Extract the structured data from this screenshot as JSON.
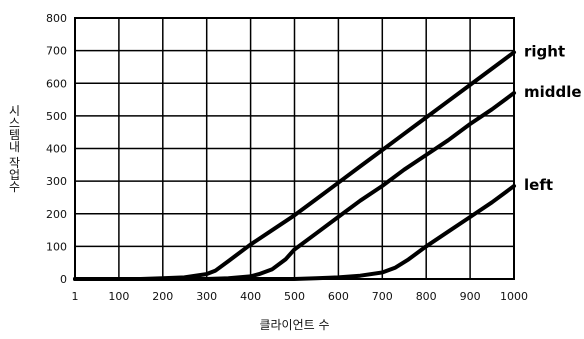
{
  "chart_data": {
    "type": "line",
    "title": "",
    "xlabel": "클라이언트 수",
    "ylabel": "시스템내 작업수",
    "x_ticks": [
      "1",
      "100",
      "200",
      "300",
      "400",
      "500",
      "600",
      "700",
      "800",
      "900",
      "1000"
    ],
    "y_ticks": [
      "0",
      "100",
      "200",
      "300",
      "400",
      "500",
      "600",
      "700",
      "800"
    ],
    "xlim": [
      1,
      1000
    ],
    "ylim": [
      0,
      800
    ],
    "grid": true,
    "series": [
      {
        "name": "right",
        "x": [
          1,
          150,
          200,
          250,
          300,
          320,
          350,
          400,
          450,
          500,
          550,
          600,
          650,
          700,
          750,
          800,
          850,
          900,
          950,
          1000
        ],
        "y": [
          0,
          0,
          2,
          5,
          15,
          25,
          55,
          105,
          150,
          195,
          245,
          295,
          345,
          395,
          445,
          495,
          545,
          595,
          645,
          695
        ]
      },
      {
        "name": "middle",
        "x": [
          1,
          300,
          350,
          400,
          420,
          450,
          480,
          500,
          550,
          600,
          650,
          700,
          750,
          800,
          850,
          900,
          950,
          1000
        ],
        "y": [
          0,
          0,
          2,
          8,
          15,
          30,
          60,
          90,
          140,
          190,
          240,
          285,
          335,
          380,
          425,
          475,
          520,
          570
        ]
      },
      {
        "name": "left",
        "x": [
          1,
          500,
          550,
          600,
          650,
          700,
          730,
          760,
          800,
          850,
          900,
          950,
          1000
        ],
        "y": [
          0,
          0,
          2,
          5,
          10,
          20,
          35,
          60,
          100,
          145,
          190,
          235,
          285
        ]
      }
    ]
  }
}
